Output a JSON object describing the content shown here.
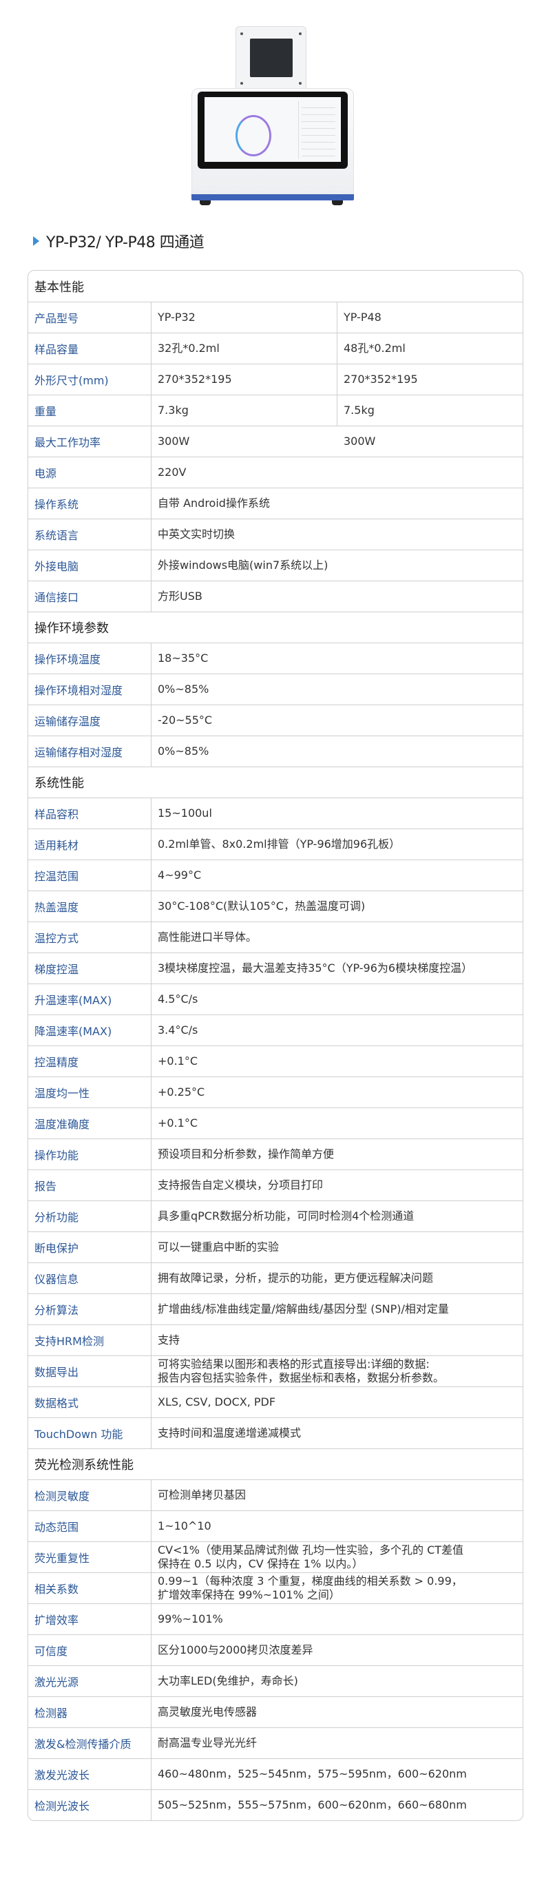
{
  "title": "YP-P32/ YP-P48  四通道",
  "colors": {
    "accent": "#3a8fd9",
    "label": "#2b5797",
    "device_strip": "#3d62b8"
  },
  "product_image": "qPCR instrument photo",
  "sections": [
    {
      "name": "基本性能",
      "rows": [
        {
          "label": "产品型号",
          "values": [
            "YP-P32",
            "YP-P48"
          ]
        },
        {
          "label": "样品容量",
          "values": [
            "32孔*0.2ml",
            "48孔*0.2ml"
          ]
        },
        {
          "label": "外形尺寸(mm)",
          "values": [
            "270*352*195",
            "270*352*195"
          ]
        },
        {
          "label": "重量",
          "values": [
            "7.3kg",
            "7.5kg"
          ]
        },
        {
          "label": "最大工作功率",
          "values": [
            "300W",
            "300W"
          ],
          "no_divider": true
        },
        {
          "label": "电源",
          "values": [
            "220V"
          ]
        },
        {
          "label": "操作系统",
          "values": [
            "自带 Android操作系统"
          ]
        },
        {
          "label": "系统语言",
          "values": [
            "中英文实时切换"
          ]
        },
        {
          "label": "外接电脑",
          "values": [
            "外接windows电脑(win7系统以上)"
          ]
        },
        {
          "label": "通信接口",
          "values": [
            "方形USB"
          ]
        }
      ]
    },
    {
      "name": "操作环境参数",
      "rows": [
        {
          "label": "操作环境温度",
          "values": [
            "18~35°C"
          ]
        },
        {
          "label": "操作环境相对湿度",
          "values": [
            "0%~85%"
          ]
        },
        {
          "label": "运输储存温度",
          "values": [
            "-20~55°C"
          ]
        },
        {
          "label": "运输储存相对湿度",
          "values": [
            "0%~85%"
          ]
        }
      ]
    },
    {
      "name": "系统性能",
      "rows": [
        {
          "label": "样品容积",
          "values": [
            "15~100ul"
          ]
        },
        {
          "label": "适用耗材",
          "values": [
            "0.2ml单管、8x0.2ml排管（YP-96增加96孔板）"
          ]
        },
        {
          "label": "控温范围",
          "values": [
            "4~99°C"
          ]
        },
        {
          "label": "热盖温度",
          "values": [
            "30°C-108°C(默认105°C，热盖温度可调)"
          ]
        },
        {
          "label": "温控方式",
          "values": [
            "高性能进口半导体。"
          ]
        },
        {
          "label": "梯度控温",
          "values": [
            "3模块梯度控温，最大温差支持35°C（YP-96为6模块梯度控温）"
          ]
        },
        {
          "label": "升温速率(MAX)",
          "values": [
            "4.5°C/s"
          ]
        },
        {
          "label": "降温速率(MAX)",
          "values": [
            "3.4°C/s"
          ]
        },
        {
          "label": "控温精度",
          "values": [
            "+0.1°C"
          ]
        },
        {
          "label": "温度均一性",
          "values": [
            "+0.25°C"
          ]
        },
        {
          "label": "温度准确度",
          "values": [
            "+0.1°C"
          ]
        },
        {
          "label": "操作功能",
          "values": [
            "预设项目和分析参数，操作简单方便"
          ]
        },
        {
          "label": "报告",
          "values": [
            "支持报告自定义模块，分项目打印"
          ]
        },
        {
          "label": "分析功能",
          "values": [
            "具多重qPCR数据分析功能，可同时检测4个检测通道"
          ]
        },
        {
          "label": "断电保护",
          "values": [
            "可以一键重启中断的实验"
          ]
        },
        {
          "label": "仪器信息",
          "values": [
            "拥有故障记录，分析，提示的功能，更方便远程解决问题"
          ]
        },
        {
          "label": "分析算法",
          "values": [
            "扩增曲线/标准曲线定量/熔解曲线/基因分型 (SNP)/相对定量"
          ]
        },
        {
          "label": "支持HRM检测",
          "values": [
            "支持"
          ]
        },
        {
          "label": "数据导出",
          "values": [
            "可将实验结果以图形和表格的形式直接导出:详细的数据:\n报告内容包括实验条件，数据坐标和表格，数据分析参数。"
          ]
        },
        {
          "label": "数据格式",
          "values": [
            "XLS, CSV, DOCX, PDF"
          ]
        },
        {
          "label": "TouchDown 功能",
          "values": [
            "支持时间和温度递增递减模式"
          ]
        }
      ]
    },
    {
      "name": "荧光检测系统性能",
      "rows": [
        {
          "label": "检测灵敏度",
          "values": [
            "可检测单拷贝基因"
          ]
        },
        {
          "label": "动态范围",
          "values": [
            "1~10^10"
          ]
        },
        {
          "label": "荧光重复性",
          "values": [
            "CV<1%（使用某品牌试剂做 孔均一性实验，多个孔的 CT差值\n保持在 0.5 以内，CV 保持在 1% 以内。）"
          ]
        },
        {
          "label": "相关系数",
          "values": [
            "0.99~1（每种浓度 3 个重复，梯度曲线的相关系数 > 0.99，\n扩增效率保持在 99%~101% 之间）"
          ]
        },
        {
          "label": "扩增效率",
          "values": [
            "99%~101%"
          ]
        },
        {
          "label": "可信度",
          "values": [
            "区分1000与2000拷贝浓度差异"
          ]
        },
        {
          "label": "激光光源",
          "values": [
            "大功率LED(免维护，寿命长)"
          ]
        },
        {
          "label": "检测器",
          "values": [
            "高灵敏度光电传感器"
          ]
        },
        {
          "label": "激发&检测传播介质",
          "values": [
            "耐高温专业导光光纤"
          ]
        },
        {
          "label": "激发光波长",
          "values": [
            "460~480nm，525~545nm，575~595nm，600~620nm"
          ]
        },
        {
          "label": "检测光波长",
          "values": [
            "505~525nm，555~575nm，600~620nm，660~680nm"
          ]
        }
      ]
    }
  ]
}
